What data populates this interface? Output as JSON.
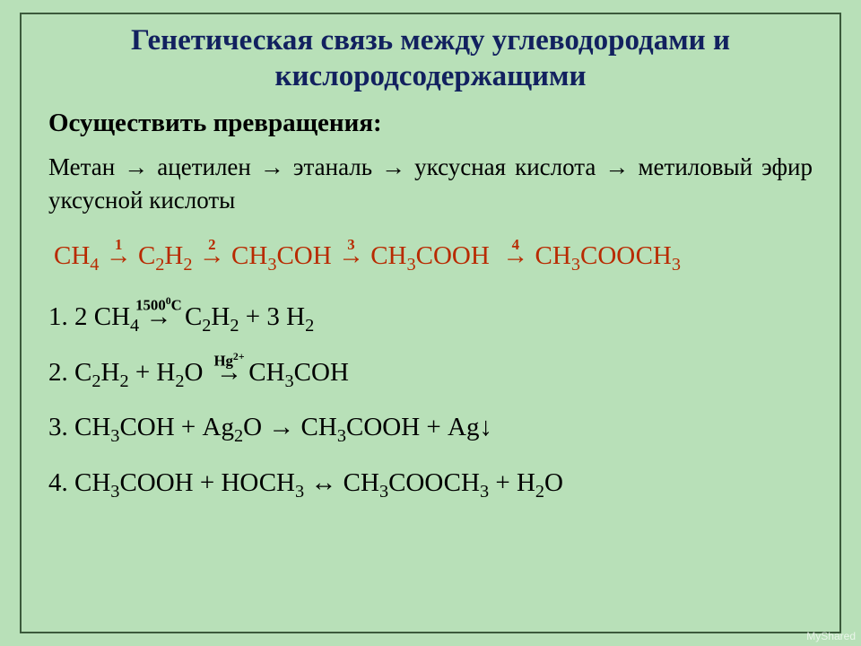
{
  "colors": {
    "background": "#b8e0b8",
    "border": "#3b5a3b",
    "title": "#12215f",
    "chain": "#b82a00",
    "body": "#000000"
  },
  "title_l1": "Генетическая связь между углеводородами и",
  "title_l2": "кислородсодержащими",
  "subtitle": "Осуществить превращения:",
  "task": "Метан → ацетилен → этаналь → уксусная кислота → метиловый эфир уксусной кислоты",
  "chain": {
    "s1": "СН",
    "s1_sub": "4",
    "n1": "1",
    "s2a": "С",
    "s2a_sub": "2",
    "s2b": "Н",
    "s2b_sub": "2",
    "n2": "2",
    "s3a": "СН",
    "s3a_sub": "3",
    "s3b": "СОН",
    "n3": "3",
    "s4a": "СН",
    "s4a_sub": "3",
    "s4b": "СООН",
    "n4": "4",
    "s5a": "СН",
    "s5a_sub": "3",
    "s5b": "СООСН",
    "s5b_sub": "3"
  },
  "eq1": {
    "prefix": "1. 2 СН",
    "p_sub": "4",
    "cond": "1500",
    "cond_sup": "0",
    "cond_suffix": "С",
    "r1": "С",
    "r1_sub": "2",
    "r2": "Н",
    "r2_sub": "2",
    "plus": " + ",
    "r3": "3 Н",
    "r3_sub": "2"
  },
  "eq2": {
    "prefix": "2. С",
    "a_sub": "2",
    "b": "Н",
    "b_sub": "2",
    "plus": " + Н",
    "c_sub": "2",
    "d": "О ",
    "cond": "Hg",
    "cond_sup": "2+",
    "r1": " СН",
    "r1_sub": "3",
    "r2": "СОН"
  },
  "eq3": {
    "prefix": "3. СН",
    "a_sub": "3",
    "b": "СОН + Ag",
    "c_sub": "2",
    "d": "O → СН",
    "e_sub": "3",
    "f": "СООН + Ag↓"
  },
  "eq4": {
    "prefix": "4. СН",
    "a_sub": "3",
    "b": "СООН + НОСН",
    "c_sub": "3",
    "d": " ↔ СН",
    "e_sub": "3",
    "f": "СООСН",
    "g_sub": "3",
    "h": " + Н",
    "i_sub": "2",
    "j": "О"
  },
  "watermark": "MyShared"
}
